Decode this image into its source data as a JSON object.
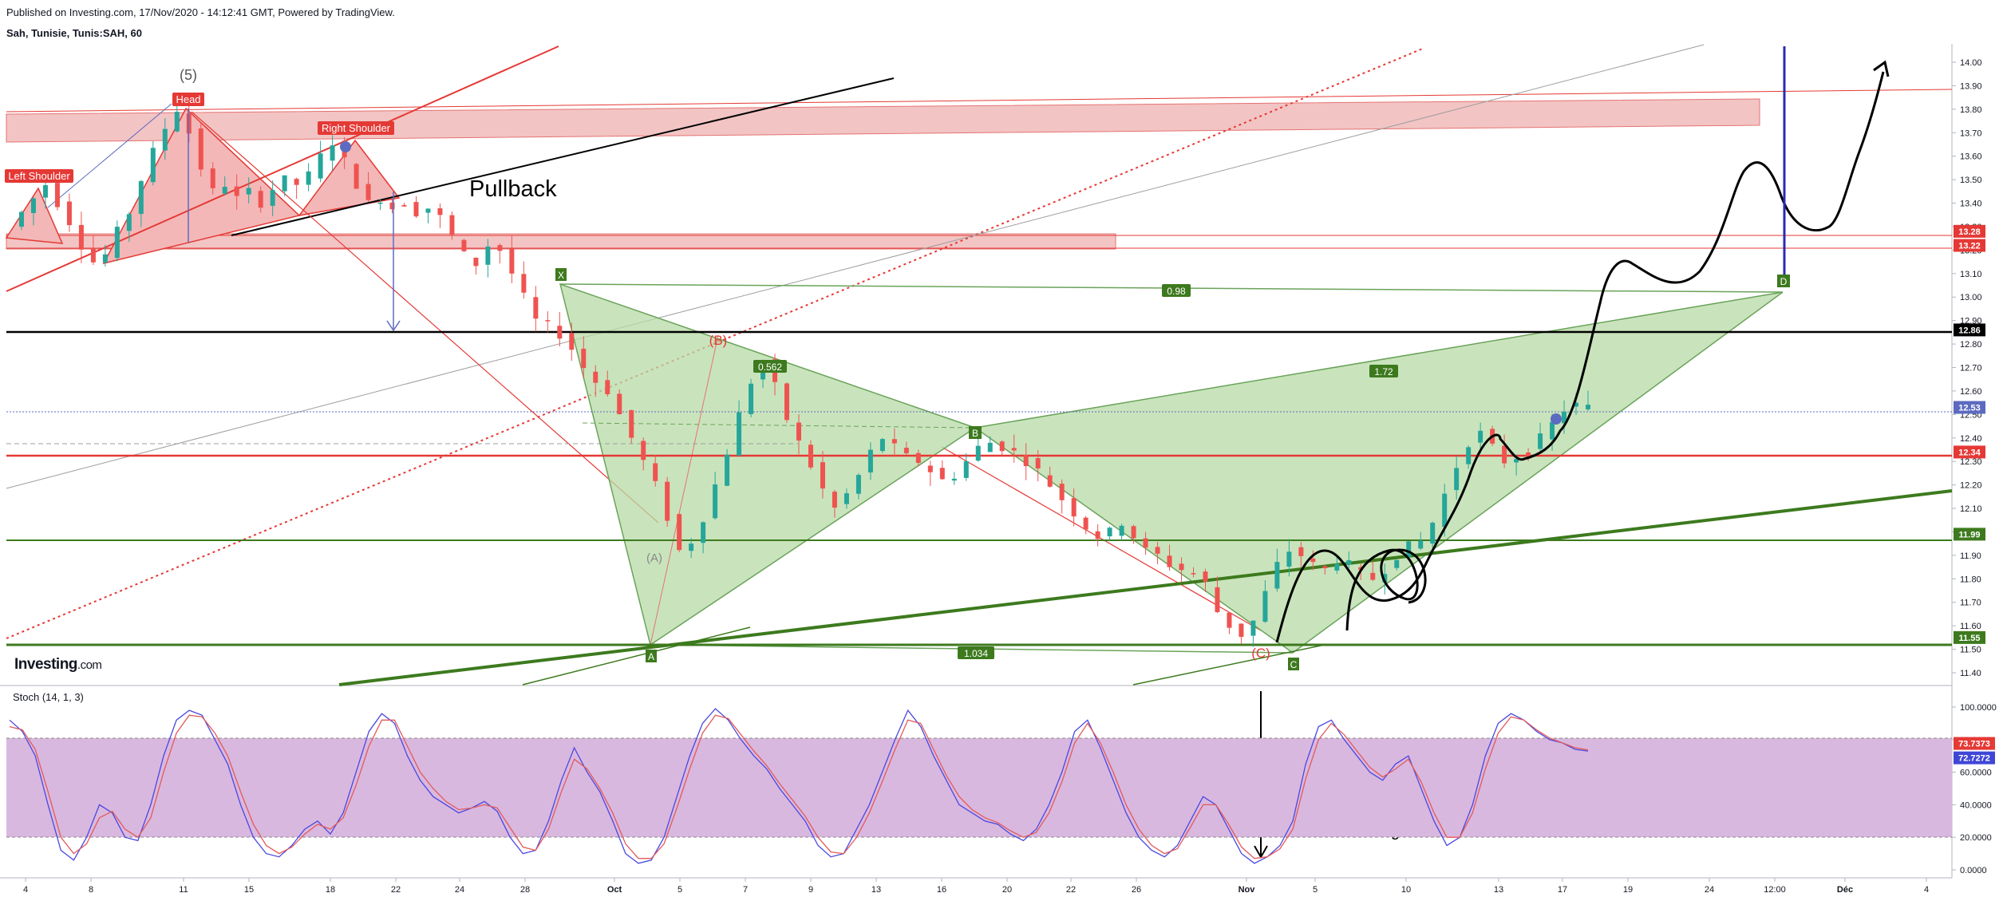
{
  "header": {
    "published": "Published on Investing.com, 17/Nov/2020 - 14:12:41 GMT, Powered by TradingView.",
    "symbol": "Sah, Tunisie, Tunis:SAH, 60"
  },
  "logo": {
    "word": "Investing",
    "suffix": ".com"
  },
  "indicator": {
    "label": "Stoch (14, 1, 3)"
  },
  "colors": {
    "up": "#26a69a",
    "down": "#ef5350",
    "red_line": "#e53935",
    "green_line": "#3d7a1e",
    "pattern_fill": "#b7dba5",
    "band_fill": "#f3c4c4",
    "stoch_band": "#d9b8df",
    "k_line": "#4a47e0",
    "d_line": "#e25a5a"
  },
  "annotations": {
    "wave5": "(5)",
    "head": "Head",
    "left_shoulder": "Left Shoulder",
    "right_shoulder": "Right Shoulder",
    "pullback": "Pullback",
    "signal": "croisement signal haussier",
    "points": {
      "x": "X",
      "a": "A",
      "b": "B",
      "c": "C",
      "d": "D",
      "wave_b": "(B)",
      "wave_c": "(C)",
      "wave_a": "(A)"
    },
    "ratios": {
      "xa_bd": "0.98",
      "ab": "0.562",
      "bc": "1.034",
      "cd": "1.72"
    }
  },
  "chart_data": [
    {
      "type": "candlestick",
      "title": "",
      "x_ticks": [
        "4",
        "8",
        "11",
        "15",
        "18",
        "22",
        "24",
        "28",
        "Oct",
        "5",
        "7",
        "9",
        "13",
        "16",
        "20",
        "22",
        "26",
        "Nov",
        "5",
        "10",
        "13",
        "17",
        "19",
        "24",
        "12:00",
        "Déc",
        "4"
      ],
      "y_ticks": [
        11.4,
        11.5,
        11.6,
        11.7,
        11.8,
        11.9,
        12.0,
        12.1,
        12.2,
        12.3,
        12.4,
        12.5,
        12.6,
        12.7,
        12.8,
        12.9,
        13.0,
        13.1,
        13.2,
        13.3,
        13.4,
        13.5,
        13.6,
        13.7,
        13.8,
        13.9,
        14.0
      ],
      "ylim": [
        11.37,
        14.06
      ],
      "price_labels": [
        {
          "value": "13.28",
          "color": "#e53935"
        },
        {
          "value": "13.22",
          "color": "#e53935"
        },
        {
          "value": "12.86",
          "color": "#000000"
        },
        {
          "value": "12.53",
          "color": "#5c6bc0"
        },
        {
          "value": "12.34",
          "color": "#e53935"
        },
        {
          "value": "11.99",
          "color": "#3d7a1e"
        },
        {
          "value": "11.55",
          "color": "#3d7a1e"
        }
      ],
      "horizontal_levels": [
        {
          "price": 12.86,
          "color": "#000000"
        },
        {
          "price": 12.34,
          "color": "#e53935"
        },
        {
          "price": 11.99,
          "color": "#3d7a1e"
        },
        {
          "price": 11.55,
          "color": "#3d7a1e"
        }
      ],
      "harmonic_points": {
        "X": 13.08,
        "A": 11.55,
        "B": 12.36,
        "C": 11.53,
        "D": 13.03
      },
      "price_path": [
        13.3,
        13.36,
        13.42,
        13.48,
        13.4,
        13.32,
        13.22,
        13.15,
        13.18,
        13.28,
        13.36,
        13.5,
        13.62,
        13.72,
        13.8,
        13.7,
        13.55,
        13.45,
        13.48,
        13.42,
        13.45,
        13.4,
        13.46,
        13.5,
        13.48,
        13.52,
        13.6,
        13.66,
        13.58,
        13.48,
        13.4,
        13.42,
        13.38,
        13.4,
        13.36,
        13.38,
        13.34,
        13.26,
        13.18,
        13.14,
        13.22,
        13.2,
        13.1,
        13.0,
        12.9,
        12.88,
        12.84,
        12.78,
        12.7,
        12.64,
        12.6,
        12.5,
        12.4,
        12.3,
        12.2,
        12.06,
        11.92,
        11.96,
        12.06,
        12.2,
        12.34,
        12.5,
        12.64,
        12.72,
        12.62,
        12.48,
        12.38,
        12.28,
        12.18,
        12.1,
        12.16,
        12.24,
        12.34,
        12.4,
        12.36,
        12.32,
        12.3,
        12.26,
        12.22,
        12.24,
        12.3,
        12.36,
        12.38,
        12.36,
        12.34,
        12.3,
        12.26,
        12.2,
        12.14,
        12.08,
        12.02,
        11.98,
        12.0,
        12.04,
        11.98,
        11.92,
        11.9,
        11.86,
        11.84,
        11.82,
        11.78,
        11.66,
        11.6,
        11.56,
        11.62,
        11.74,
        11.86,
        11.92,
        11.9,
        11.86,
        11.84,
        11.88,
        11.86,
        11.82,
        11.8,
        11.84,
        11.9,
        11.94,
        11.96,
        12.04,
        12.16,
        12.28,
        12.38,
        12.42,
        12.36,
        12.3,
        12.32,
        12.34,
        12.4,
        12.46,
        12.52,
        12.54,
        12.53
      ]
    },
    {
      "type": "line",
      "title": "Stoch (14, 1, 3)",
      "y_ticks": [
        "100.0000",
        "80.0000",
        "60.0000",
        "40.0000",
        "20.0000",
        "0.0000"
      ],
      "levels": [
        80,
        20
      ],
      "last_values": [
        {
          "value": "73.7373",
          "color": "#e53935"
        },
        {
          "value": "72.7272",
          "color": "#3f46d6"
        }
      ],
      "series": [
        {
          "values": [
            92,
            85,
            70,
            40,
            12,
            6,
            20,
            40,
            35,
            20,
            18,
            40,
            70,
            92,
            98,
            95,
            80,
            65,
            40,
            20,
            10,
            8,
            15,
            25,
            30,
            22,
            35,
            60,
            85,
            96,
            90,
            70,
            55,
            45,
            40,
            35,
            38,
            42,
            36,
            20,
            10,
            12,
            30,
            55,
            75,
            60,
            48,
            30,
            10,
            4,
            6,
            20,
            45,
            70,
            90,
            99,
            92,
            80,
            70,
            62,
            50,
            40,
            30,
            15,
            8,
            10,
            25,
            40,
            60,
            80,
            98,
            88,
            70,
            55,
            40,
            35,
            30,
            28,
            22,
            18,
            25,
            40,
            60,
            85,
            92,
            75,
            55,
            35,
            20,
            12,
            8,
            15,
            30,
            45,
            40,
            25,
            10,
            4,
            8,
            15,
            30,
            65,
            88,
            92,
            80,
            70,
            60,
            55,
            65,
            70,
            50,
            30,
            15,
            20,
            40,
            70,
            90,
            96,
            92,
            85,
            80,
            78,
            74,
            73
          ]
        },
        {
          "values": [
            88,
            86,
            74,
            48,
            20,
            10,
            16,
            32,
            36,
            25,
            20,
            32,
            60,
            84,
            95,
            94,
            84,
            70,
            48,
            28,
            15,
            10,
            14,
            22,
            28,
            25,
            32,
            52,
            76,
            92,
            92,
            76,
            60,
            50,
            42,
            37,
            38,
            40,
            38,
            26,
            14,
            12,
            25,
            48,
            68,
            62,
            50,
            35,
            16,
            7,
            7,
            16,
            38,
            62,
            84,
            95,
            93,
            83,
            73,
            64,
            53,
            43,
            33,
            20,
            11,
            10,
            20,
            35,
            54,
            74,
            92,
            90,
            74,
            58,
            45,
            37,
            32,
            29,
            24,
            20,
            23,
            35,
            54,
            78,
            90,
            78,
            60,
            40,
            25,
            15,
            10,
            13,
            26,
            40,
            40,
            28,
            14,
            7,
            8,
            13,
            25,
            56,
            80,
            90,
            83,
            73,
            63,
            57,
            62,
            68,
            54,
            35,
            20,
            20,
            35,
            62,
            84,
            94,
            92,
            86,
            81,
            78,
            75,
            73.7
          ]
        }
      ]
    }
  ]
}
